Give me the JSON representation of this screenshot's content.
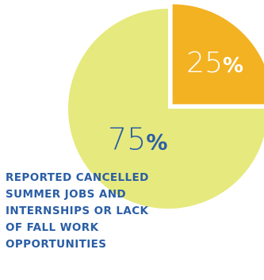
{
  "chart_data": {
    "type": "pie",
    "slices": [
      {
        "label": "",
        "value": 75,
        "display": "75",
        "color": "#e6e97d",
        "text_color": "#2a5ea5"
      },
      {
        "label": "",
        "value": 25,
        "display": "25",
        "color": "#f3b222",
        "text_color": "#ffffff",
        "exploded": true
      }
    ],
    "percent_symbol": "%",
    "caption": "REPORTED CANCELLED SUMMER JOBS AND INTERNSHIPS OR LACK OF FALL WORK OPPORTUNITIES"
  }
}
